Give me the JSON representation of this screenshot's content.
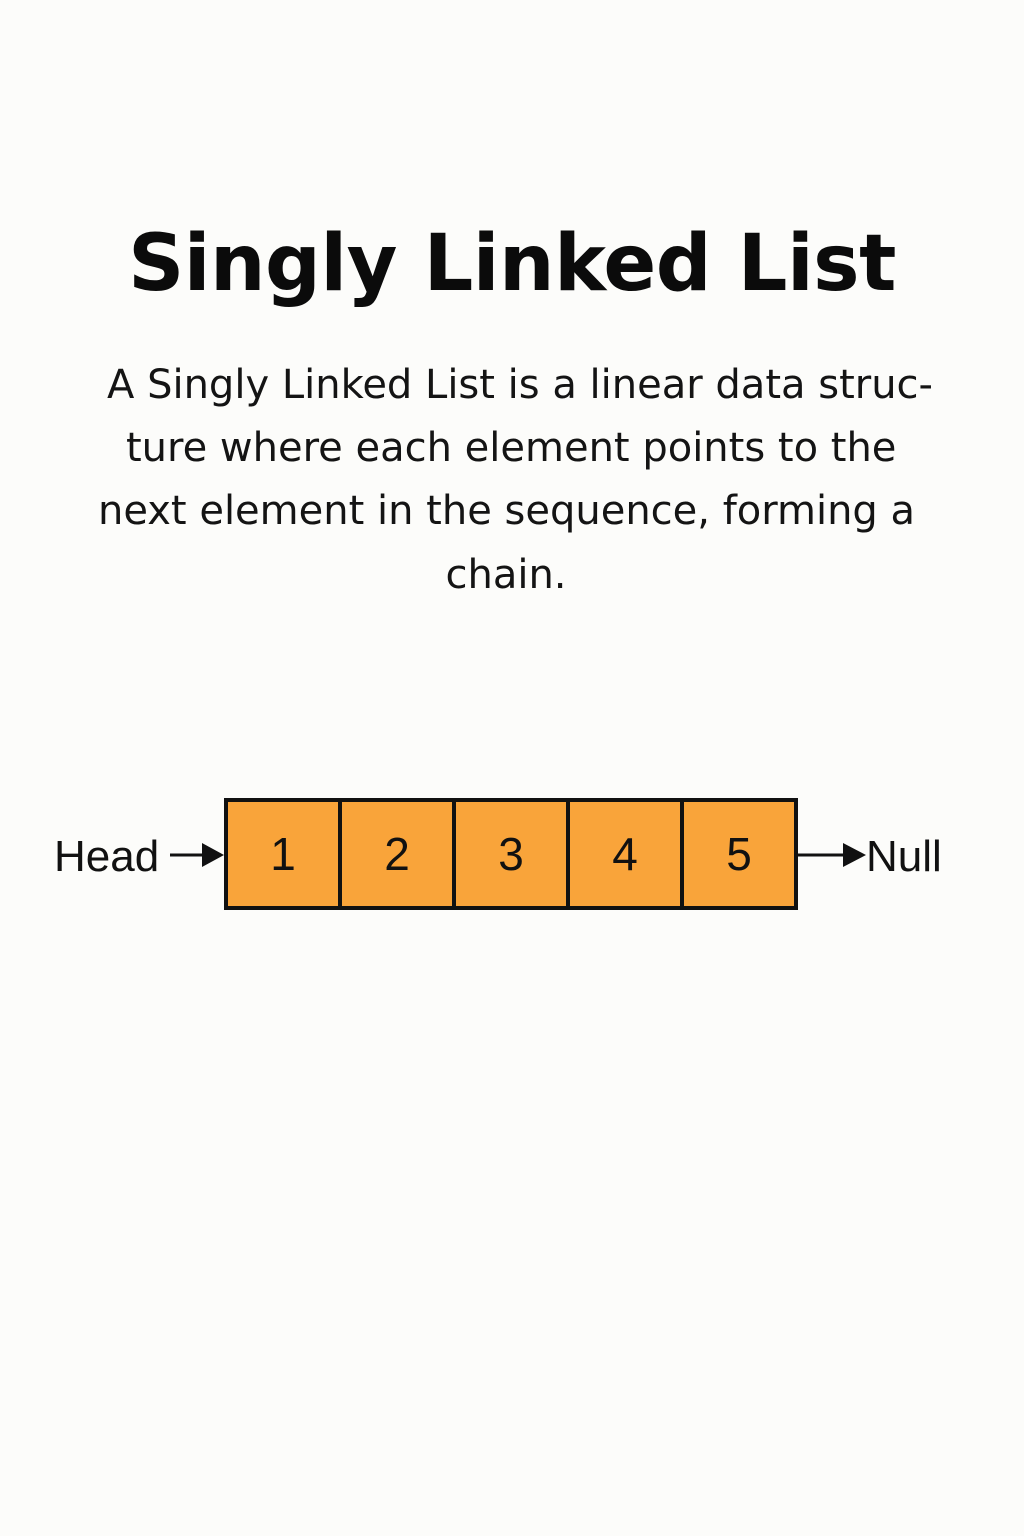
{
  "title": "Singly Linked List",
  "description_lines": [
    "A Singly Linked List is a linear data struc-",
    "ture where each element points to the",
    "next element in the sequence, forming a",
    "chain."
  ],
  "diagram": {
    "head_label": "Head",
    "null_label": "Null",
    "nodes": [
      "1",
      "2",
      "3",
      "4",
      "5"
    ],
    "node_color": "#F9A43A",
    "border_color": "#111111",
    "background_color": "#FCFCFA"
  }
}
